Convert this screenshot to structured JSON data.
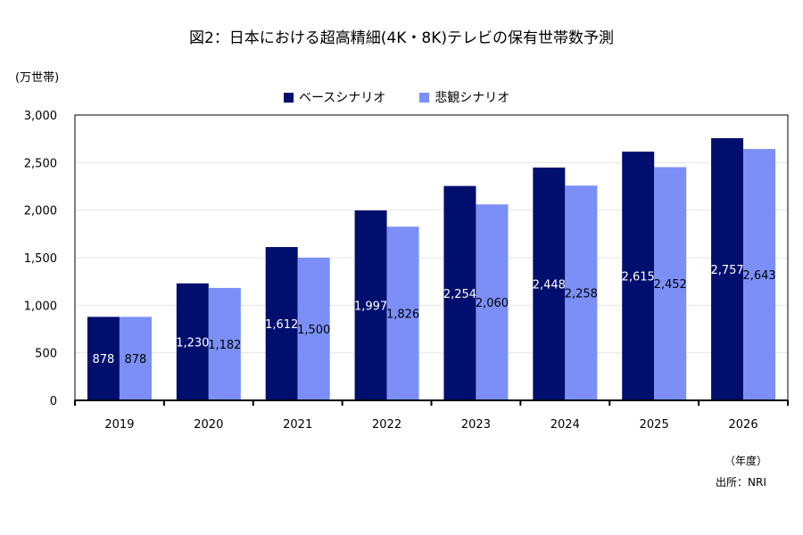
{
  "chart_data": {
    "type": "bar",
    "title": "図2：日本における超高精細(4K・8K)テレビの保有世帯数予測",
    "ylabel": "(万世帯)",
    "xlabel": "（年度）",
    "source": "出所：NRI",
    "categories": [
      "2019",
      "2020",
      "2021",
      "2022",
      "2023",
      "2024",
      "2025",
      "2026"
    ],
    "ylim": [
      0,
      3000
    ],
    "yticks": [
      0,
      500,
      1000,
      1500,
      2000,
      2500,
      3000
    ],
    "ytick_labels": [
      "0",
      "500",
      "1,000",
      "1,500",
      "2,000",
      "2,500",
      "3,000"
    ],
    "grid": true,
    "legend_position": "top-center",
    "series": [
      {
        "name": "ベースシナリオ",
        "color": "#000f6e",
        "values": [
          878,
          1230,
          1612,
          1997,
          2254,
          2448,
          2615,
          2757
        ],
        "labels": [
          "878",
          "1,230",
          "1,612",
          "1,997",
          "2,254",
          "2,448",
          "2,615",
          "2,757"
        ]
      },
      {
        "name": "悲観シナリオ",
        "color": "#7b8ff6",
        "values": [
          878,
          1182,
          1500,
          1826,
          2060,
          2258,
          2452,
          2643
        ],
        "labels": [
          "878",
          "1,182",
          "1,500",
          "1,826",
          "2,060",
          "2,258",
          "2,452",
          "2,643"
        ]
      }
    ]
  }
}
